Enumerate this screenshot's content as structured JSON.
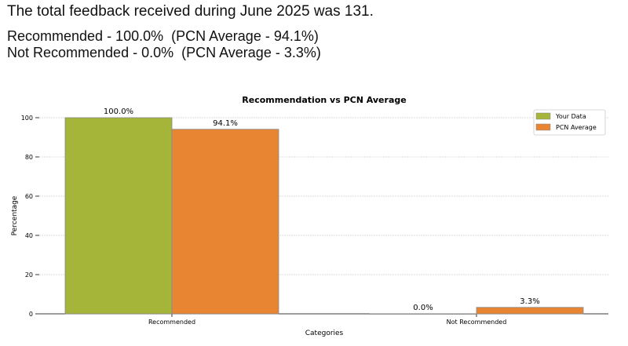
{
  "summary": {
    "line1": "The total feedback received during June 2025 was 131.",
    "line2": "Recommended - 100.0%  (PCN Average - 94.1%)",
    "line3": "Not Recommended - 0.0%  (PCN Average - 3.3%)"
  },
  "chart_data": {
    "type": "bar",
    "title": "Recommendation vs PCN Average",
    "xlabel": "Categories",
    "ylabel": "Percentage",
    "ylim": [
      0,
      100
    ],
    "yticks": [
      "0",
      "20",
      "40",
      "60",
      "80",
      "100"
    ],
    "categories": [
      "Recommended",
      "Not Recommended"
    ],
    "series": [
      {
        "name": "Your Data",
        "values": [
          100.0,
          0.0
        ],
        "labels": [
          "100.0%",
          "0.0%"
        ],
        "color": "#a4b53a"
      },
      {
        "name": "PCN Average",
        "values": [
          94.1,
          3.3
        ],
        "labels": [
          "94.1%",
          "3.3%"
        ],
        "color": "#e88533"
      }
    ],
    "grid": true,
    "legend": "top-right"
  }
}
